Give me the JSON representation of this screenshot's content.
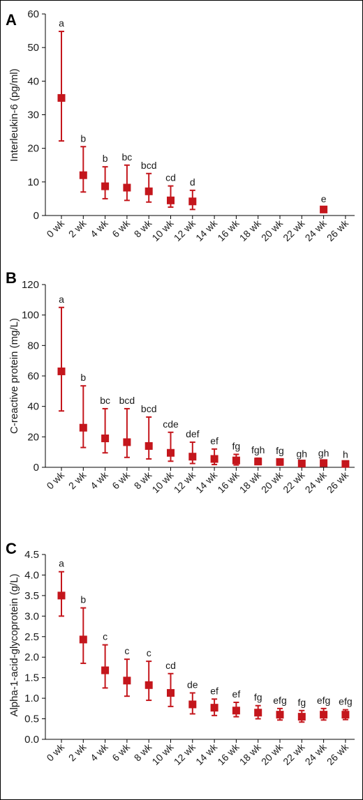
{
  "colors": {
    "marker": "#c4161c",
    "axis": "#000000",
    "text": "#1a1a1a"
  },
  "chart_data": [
    {
      "panel": "A",
      "type": "scatter",
      "title": "",
      "ylabel": "Interleukin-6 (pg/ml)",
      "xlabel": "",
      "ylim": [
        0,
        60
      ],
      "yticks": [
        0,
        10,
        20,
        30,
        40,
        50,
        60
      ],
      "ytick_labels": [
        "0",
        "10",
        "20",
        "30",
        "40",
        "50",
        "60"
      ],
      "categories": [
        "0 wk",
        "2 wk",
        "4 wk",
        "6 wk",
        "8 wk",
        "10 wk",
        "12 wk",
        "14 wk",
        "16 wk",
        "18 wk",
        "20 wk",
        "22 wk",
        "24 wk",
        "26 wk"
      ],
      "points": [
        {
          "x": "0 wk",
          "y": 35,
          "low": 22.2,
          "high": 54.8,
          "label": "a"
        },
        {
          "x": "2 wk",
          "y": 12,
          "low": 7,
          "high": 20.5,
          "label": "b"
        },
        {
          "x": "4 wk",
          "y": 8.7,
          "low": 5,
          "high": 14.5,
          "label": "b"
        },
        {
          "x": "6 wk",
          "y": 8.3,
          "low": 4.5,
          "high": 15,
          "label": "bc"
        },
        {
          "x": "8 wk",
          "y": 7.2,
          "low": 4,
          "high": 12.5,
          "label": "bcd"
        },
        {
          "x": "10 wk",
          "y": 4.5,
          "low": 2.5,
          "high": 8.8,
          "label": "cd"
        },
        {
          "x": "12 wk",
          "y": 4.2,
          "low": 1.8,
          "high": 7.5,
          "label": "d"
        },
        {
          "x": "24 wk",
          "y": 1.8,
          "low": 1.2,
          "high": 2.5,
          "label": "e"
        }
      ]
    },
    {
      "panel": "B",
      "type": "scatter",
      "title": "",
      "ylabel": "C-reactive protein (mg/L)",
      "xlabel": "",
      "ylim": [
        0,
        120
      ],
      "yticks": [
        0,
        20,
        40,
        60,
        80,
        100,
        120
      ],
      "ytick_labels": [
        "0",
        "20",
        "40",
        "60",
        "80",
        "100",
        "120"
      ],
      "categories": [
        "0 wk",
        "2 wk",
        "4 wk",
        "6 wk",
        "8 wk",
        "10 wk",
        "12 wk",
        "14 wk",
        "16 wk",
        "18 wk",
        "20 wk",
        "22 wk",
        "24 wk",
        "26 wk"
      ],
      "points": [
        {
          "x": "0 wk",
          "y": 63,
          "low": 37,
          "high": 105,
          "label": "a"
        },
        {
          "x": "2 wk",
          "y": 26,
          "low": 13,
          "high": 53.5,
          "label": "b"
        },
        {
          "x": "4 wk",
          "y": 19,
          "low": 9.5,
          "high": 38.5,
          "label": "bc"
        },
        {
          "x": "6 wk",
          "y": 16.5,
          "low": 6.5,
          "high": 38.5,
          "label": "bcd"
        },
        {
          "x": "8 wk",
          "y": 14,
          "low": 5.5,
          "high": 33,
          "label": "bcd"
        },
        {
          "x": "10 wk",
          "y": 9.5,
          "low": 4,
          "high": 23,
          "label": "cde"
        },
        {
          "x": "12 wk",
          "y": 7,
          "low": 2.5,
          "high": 16.5,
          "label": "def"
        },
        {
          "x": "14 wk",
          "y": 5.5,
          "low": 1.8,
          "high": 12,
          "label": "ef"
        },
        {
          "x": "16 wk",
          "y": 4.5,
          "low": 1.5,
          "high": 8.5,
          "label": "fg"
        },
        {
          "x": "18 wk",
          "y": 3.8,
          "low": 1.8,
          "high": 6,
          "label": "fgh"
        },
        {
          "x": "20 wk",
          "y": 3.5,
          "low": 1.5,
          "high": 5.5,
          "label": "fg"
        },
        {
          "x": "22 wk",
          "y": 2.5,
          "low": 1.5,
          "high": 3.5,
          "label": "gh"
        },
        {
          "x": "24 wk",
          "y": 2.8,
          "low": 1.5,
          "high": 4,
          "label": "gh"
        },
        {
          "x": "26 wk",
          "y": 2.2,
          "low": 1.4,
          "high": 3,
          "label": "h"
        }
      ]
    },
    {
      "panel": "C",
      "type": "scatter",
      "title": "",
      "ylabel": "Alpha-1-acid-glycoprotein (g/L)",
      "xlabel": "",
      "ylim": [
        0,
        4.5
      ],
      "yticks": [
        0,
        0.5,
        1,
        1.5,
        2,
        2.5,
        3,
        3.5,
        4,
        4.5
      ],
      "ytick_labels": [
        "0.0",
        "0.5",
        "1.0",
        "1.5",
        "2.0",
        "2.5",
        "3.0",
        "3.5",
        "4.0",
        "4.5"
      ],
      "categories": [
        "0 wk",
        "2 wk",
        "4 wk",
        "6 wk",
        "8 wk",
        "10 wk",
        "12 wk",
        "14 wk",
        "16 wk",
        "18 wk",
        "20 wk",
        "22 wk",
        "24 wk",
        "26 wk"
      ],
      "points": [
        {
          "x": "0 wk",
          "y": 3.5,
          "low": 3.0,
          "high": 4.08,
          "label": "a"
        },
        {
          "x": "2 wk",
          "y": 2.43,
          "low": 1.85,
          "high": 3.2,
          "label": "b"
        },
        {
          "x": "4 wk",
          "y": 1.68,
          "low": 1.25,
          "high": 2.3,
          "label": "c"
        },
        {
          "x": "6 wk",
          "y": 1.43,
          "low": 1.05,
          "high": 1.95,
          "label": "c"
        },
        {
          "x": "8 wk",
          "y": 1.32,
          "low": 0.95,
          "high": 1.9,
          "label": "c"
        },
        {
          "x": "10 wk",
          "y": 1.13,
          "low": 0.8,
          "high": 1.6,
          "label": "cd"
        },
        {
          "x": "12 wk",
          "y": 0.85,
          "low": 0.62,
          "high": 1.13,
          "label": "de"
        },
        {
          "x": "14 wk",
          "y": 0.77,
          "low": 0.58,
          "high": 0.98,
          "label": "ef"
        },
        {
          "x": "16 wk",
          "y": 0.7,
          "low": 0.55,
          "high": 0.9,
          "label": "ef"
        },
        {
          "x": "18 wk",
          "y": 0.65,
          "low": 0.5,
          "high": 0.82,
          "label": "fg"
        },
        {
          "x": "20 wk",
          "y": 0.6,
          "low": 0.47,
          "high": 0.75,
          "label": "efg"
        },
        {
          "x": "22 wk",
          "y": 0.55,
          "low": 0.42,
          "high": 0.7,
          "label": "fg"
        },
        {
          "x": "24 wk",
          "y": 0.6,
          "low": 0.47,
          "high": 0.75,
          "label": "efg"
        },
        {
          "x": "26 wk",
          "y": 0.6,
          "low": 0.48,
          "high": 0.72,
          "label": "efg"
        }
      ]
    }
  ]
}
